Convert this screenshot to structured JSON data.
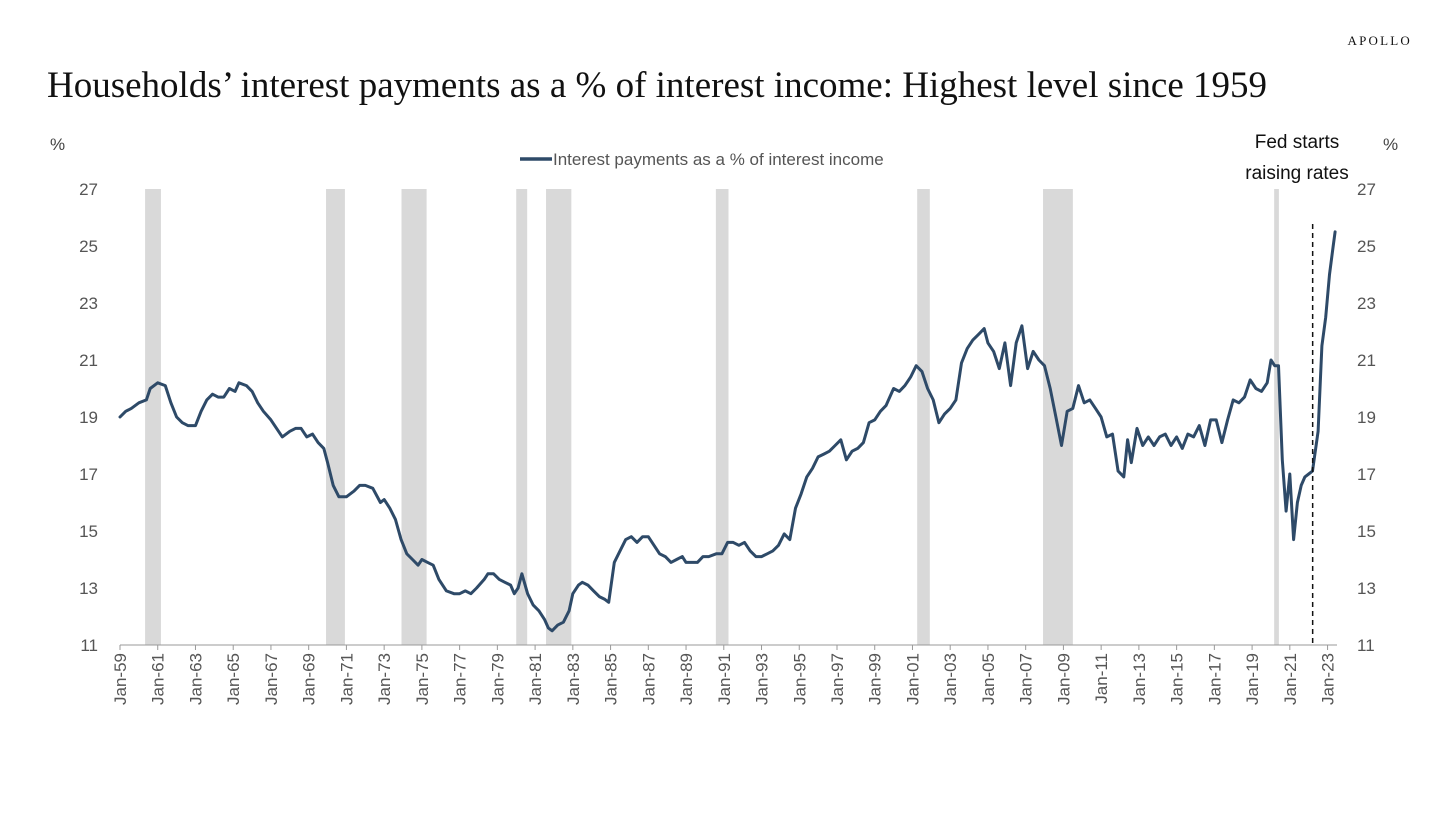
{
  "brand": "APOLLO",
  "title": "Households’ interest payments as a % of interest income: Highest level since 1959",
  "chart_data": {
    "type": "line",
    "left_unit": "%",
    "right_unit": "%",
    "ylim": [
      11,
      27
    ],
    "yticks": [
      11,
      13,
      15,
      17,
      19,
      21,
      23,
      25,
      27
    ],
    "xlim": [
      1959.0,
      2023.5
    ],
    "xticks": [
      "Jan-59",
      "Jan-61",
      "Jan-63",
      "Jan-65",
      "Jan-67",
      "Jan-69",
      "Jan-71",
      "Jan-73",
      "Jan-75",
      "Jan-77",
      "Jan-79",
      "Jan-81",
      "Jan-83",
      "Jan-85",
      "Jan-87",
      "Jan-89",
      "Jan-91",
      "Jan-93",
      "Jan-95",
      "Jan-97",
      "Jan-99",
      "Jan-01",
      "Jan-03",
      "Jan-05",
      "Jan-07",
      "Jan-09",
      "Jan-11",
      "Jan-13",
      "Jan-15",
      "Jan-17",
      "Jan-19",
      "Jan-21",
      "Jan-23"
    ],
    "grid": false,
    "legend_position": "top-center",
    "series": [
      {
        "name": "Interest payments as a % of interest income",
        "color": "#2e4a68",
        "points": [
          [
            1959.0,
            19.0
          ],
          [
            1959.3,
            19.2
          ],
          [
            1959.6,
            19.3
          ],
          [
            1960.0,
            19.5
          ],
          [
            1960.4,
            19.6
          ],
          [
            1960.6,
            20.0
          ],
          [
            1961.0,
            20.2
          ],
          [
            1961.4,
            20.1
          ],
          [
            1961.7,
            19.5
          ],
          [
            1962.0,
            19.0
          ],
          [
            1962.3,
            18.8
          ],
          [
            1962.6,
            18.7
          ],
          [
            1963.0,
            18.7
          ],
          [
            1963.3,
            19.2
          ],
          [
            1963.6,
            19.6
          ],
          [
            1963.9,
            19.8
          ],
          [
            1964.2,
            19.7
          ],
          [
            1964.5,
            19.7
          ],
          [
            1964.8,
            20.0
          ],
          [
            1965.1,
            19.9
          ],
          [
            1965.3,
            20.2
          ],
          [
            1965.7,
            20.1
          ],
          [
            1966.0,
            19.9
          ],
          [
            1966.3,
            19.5
          ],
          [
            1966.6,
            19.2
          ],
          [
            1967.0,
            18.9
          ],
          [
            1967.3,
            18.6
          ],
          [
            1967.6,
            18.3
          ],
          [
            1968.0,
            18.5
          ],
          [
            1968.3,
            18.6
          ],
          [
            1968.6,
            18.6
          ],
          [
            1968.9,
            18.3
          ],
          [
            1969.2,
            18.4
          ],
          [
            1969.5,
            18.1
          ],
          [
            1969.8,
            17.9
          ],
          [
            1970.0,
            17.4
          ],
          [
            1970.3,
            16.6
          ],
          [
            1970.6,
            16.2
          ],
          [
            1971.0,
            16.2
          ],
          [
            1971.4,
            16.4
          ],
          [
            1971.7,
            16.6
          ],
          [
            1972.0,
            16.6
          ],
          [
            1972.4,
            16.5
          ],
          [
            1972.8,
            16.0
          ],
          [
            1973.0,
            16.1
          ],
          [
            1973.3,
            15.8
          ],
          [
            1973.6,
            15.4
          ],
          [
            1973.9,
            14.7
          ],
          [
            1974.2,
            14.2
          ],
          [
            1974.5,
            14.0
          ],
          [
            1974.8,
            13.8
          ],
          [
            1975.0,
            14.0
          ],
          [
            1975.3,
            13.9
          ],
          [
            1975.6,
            13.8
          ],
          [
            1975.9,
            13.3
          ],
          [
            1976.3,
            12.9
          ],
          [
            1976.7,
            12.8
          ],
          [
            1977.0,
            12.8
          ],
          [
            1977.3,
            12.9
          ],
          [
            1977.6,
            12.8
          ],
          [
            1977.9,
            13.0
          ],
          [
            1978.3,
            13.3
          ],
          [
            1978.5,
            13.5
          ],
          [
            1978.8,
            13.5
          ],
          [
            1979.1,
            13.3
          ],
          [
            1979.4,
            13.2
          ],
          [
            1979.7,
            13.1
          ],
          [
            1979.9,
            12.8
          ],
          [
            1980.1,
            13.0
          ],
          [
            1980.3,
            13.5
          ],
          [
            1980.6,
            12.8
          ],
          [
            1980.9,
            12.4
          ],
          [
            1981.2,
            12.2
          ],
          [
            1981.5,
            11.9
          ],
          [
            1981.7,
            11.6
          ],
          [
            1981.9,
            11.5
          ],
          [
            1982.2,
            11.7
          ],
          [
            1982.5,
            11.8
          ],
          [
            1982.8,
            12.2
          ],
          [
            1983.0,
            12.8
          ],
          [
            1983.3,
            13.1
          ],
          [
            1983.5,
            13.2
          ],
          [
            1983.8,
            13.1
          ],
          [
            1984.1,
            12.9
          ],
          [
            1984.4,
            12.7
          ],
          [
            1984.7,
            12.6
          ],
          [
            1984.9,
            12.5
          ],
          [
            1985.2,
            13.9
          ],
          [
            1985.5,
            14.3
          ],
          [
            1985.8,
            14.7
          ],
          [
            1986.1,
            14.8
          ],
          [
            1986.4,
            14.6
          ],
          [
            1986.7,
            14.8
          ],
          [
            1987.0,
            14.8
          ],
          [
            1987.3,
            14.5
          ],
          [
            1987.6,
            14.2
          ],
          [
            1987.9,
            14.1
          ],
          [
            1988.2,
            13.9
          ],
          [
            1988.5,
            14.0
          ],
          [
            1988.8,
            14.1
          ],
          [
            1989.0,
            13.9
          ],
          [
            1989.3,
            13.9
          ],
          [
            1989.6,
            13.9
          ],
          [
            1989.9,
            14.1
          ],
          [
            1990.2,
            14.1
          ],
          [
            1990.6,
            14.2
          ],
          [
            1990.9,
            14.2
          ],
          [
            1991.2,
            14.6
          ],
          [
            1991.5,
            14.6
          ],
          [
            1991.8,
            14.5
          ],
          [
            1992.1,
            14.6
          ],
          [
            1992.4,
            14.3
          ],
          [
            1992.7,
            14.1
          ],
          [
            1993.0,
            14.1
          ],
          [
            1993.3,
            14.2
          ],
          [
            1993.6,
            14.3
          ],
          [
            1993.9,
            14.5
          ],
          [
            1994.2,
            14.9
          ],
          [
            1994.5,
            14.7
          ],
          [
            1994.8,
            15.8
          ],
          [
            1995.1,
            16.3
          ],
          [
            1995.4,
            16.9
          ],
          [
            1995.7,
            17.2
          ],
          [
            1996.0,
            17.6
          ],
          [
            1996.3,
            17.7
          ],
          [
            1996.6,
            17.8
          ],
          [
            1996.9,
            18.0
          ],
          [
            1997.2,
            18.2
          ],
          [
            1997.5,
            17.5
          ],
          [
            1997.8,
            17.8
          ],
          [
            1998.1,
            17.9
          ],
          [
            1998.4,
            18.1
          ],
          [
            1998.7,
            18.8
          ],
          [
            1999.0,
            18.9
          ],
          [
            1999.3,
            19.2
          ],
          [
            1999.6,
            19.4
          ],
          [
            2000.0,
            20.0
          ],
          [
            2000.3,
            19.9
          ],
          [
            2000.6,
            20.1
          ],
          [
            2000.9,
            20.4
          ],
          [
            2001.2,
            20.8
          ],
          [
            2001.5,
            20.6
          ],
          [
            2001.8,
            20.0
          ],
          [
            2002.1,
            19.6
          ],
          [
            2002.4,
            18.8
          ],
          [
            2002.7,
            19.1
          ],
          [
            2003.0,
            19.3
          ],
          [
            2003.3,
            19.6
          ],
          [
            2003.6,
            20.9
          ],
          [
            2003.9,
            21.4
          ],
          [
            2004.2,
            21.7
          ],
          [
            2004.5,
            21.9
          ],
          [
            2004.8,
            22.1
          ],
          [
            2005.0,
            21.6
          ],
          [
            2005.3,
            21.3
          ],
          [
            2005.6,
            20.7
          ],
          [
            2005.9,
            21.6
          ],
          [
            2006.2,
            20.1
          ],
          [
            2006.5,
            21.6
          ],
          [
            2006.8,
            22.2
          ],
          [
            2007.1,
            20.7
          ],
          [
            2007.4,
            21.3
          ],
          [
            2007.7,
            21.0
          ],
          [
            2008.0,
            20.8
          ],
          [
            2008.3,
            20.0
          ],
          [
            2008.6,
            19.0
          ],
          [
            2008.9,
            18.0
          ],
          [
            2009.2,
            19.2
          ],
          [
            2009.5,
            19.3
          ],
          [
            2009.8,
            20.1
          ],
          [
            2010.1,
            19.5
          ],
          [
            2010.4,
            19.6
          ],
          [
            2010.7,
            19.3
          ],
          [
            2011.0,
            19.0
          ],
          [
            2011.3,
            18.3
          ],
          [
            2011.6,
            18.4
          ],
          [
            2011.9,
            17.1
          ],
          [
            2012.2,
            16.9
          ],
          [
            2012.4,
            18.2
          ],
          [
            2012.6,
            17.4
          ],
          [
            2012.9,
            18.6
          ],
          [
            2013.2,
            18.0
          ],
          [
            2013.5,
            18.3
          ],
          [
            2013.8,
            18.0
          ],
          [
            2014.1,
            18.3
          ],
          [
            2014.4,
            18.4
          ],
          [
            2014.7,
            18.0
          ],
          [
            2015.0,
            18.3
          ],
          [
            2015.3,
            17.9
          ],
          [
            2015.6,
            18.4
          ],
          [
            2015.9,
            18.3
          ],
          [
            2016.2,
            18.7
          ],
          [
            2016.5,
            18.0
          ],
          [
            2016.8,
            18.9
          ],
          [
            2017.1,
            18.9
          ],
          [
            2017.4,
            18.1
          ],
          [
            2017.7,
            18.9
          ],
          [
            2018.0,
            19.6
          ],
          [
            2018.3,
            19.5
          ],
          [
            2018.6,
            19.7
          ],
          [
            2018.9,
            20.3
          ],
          [
            2019.2,
            20.0
          ],
          [
            2019.5,
            19.9
          ],
          [
            2019.8,
            20.2
          ],
          [
            2020.0,
            21.0
          ],
          [
            2020.2,
            20.8
          ],
          [
            2020.4,
            20.8
          ],
          [
            2020.6,
            17.5
          ],
          [
            2020.8,
            15.7
          ],
          [
            2021.0,
            17.0
          ],
          [
            2021.2,
            14.7
          ],
          [
            2021.4,
            16.0
          ],
          [
            2021.6,
            16.6
          ],
          [
            2021.8,
            16.9
          ],
          [
            2022.0,
            17.0
          ],
          [
            2022.2,
            17.1
          ],
          [
            2022.5,
            18.5
          ],
          [
            2022.7,
            21.5
          ],
          [
            2022.9,
            22.5
          ],
          [
            2023.1,
            24.0
          ],
          [
            2023.3,
            25.0
          ],
          [
            2023.4,
            25.5
          ]
        ]
      }
    ],
    "recessions": [
      [
        1960.33,
        1961.17
      ],
      [
        1969.92,
        1970.92
      ],
      [
        1973.92,
        1975.25
      ],
      [
        1980.0,
        1980.58
      ],
      [
        1981.58,
        1982.92
      ],
      [
        1990.58,
        1991.25
      ],
      [
        2001.25,
        2001.92
      ],
      [
        2007.92,
        2009.5
      ],
      [
        2020.17,
        2020.42
      ]
    ],
    "annotation": {
      "lines": [
        "Fed starts",
        "raising rates"
      ],
      "x": 2022.21
    },
    "colors": {
      "line": "#2e4a68",
      "recession": "#d9d9d9",
      "axis": "#999999"
    }
  }
}
